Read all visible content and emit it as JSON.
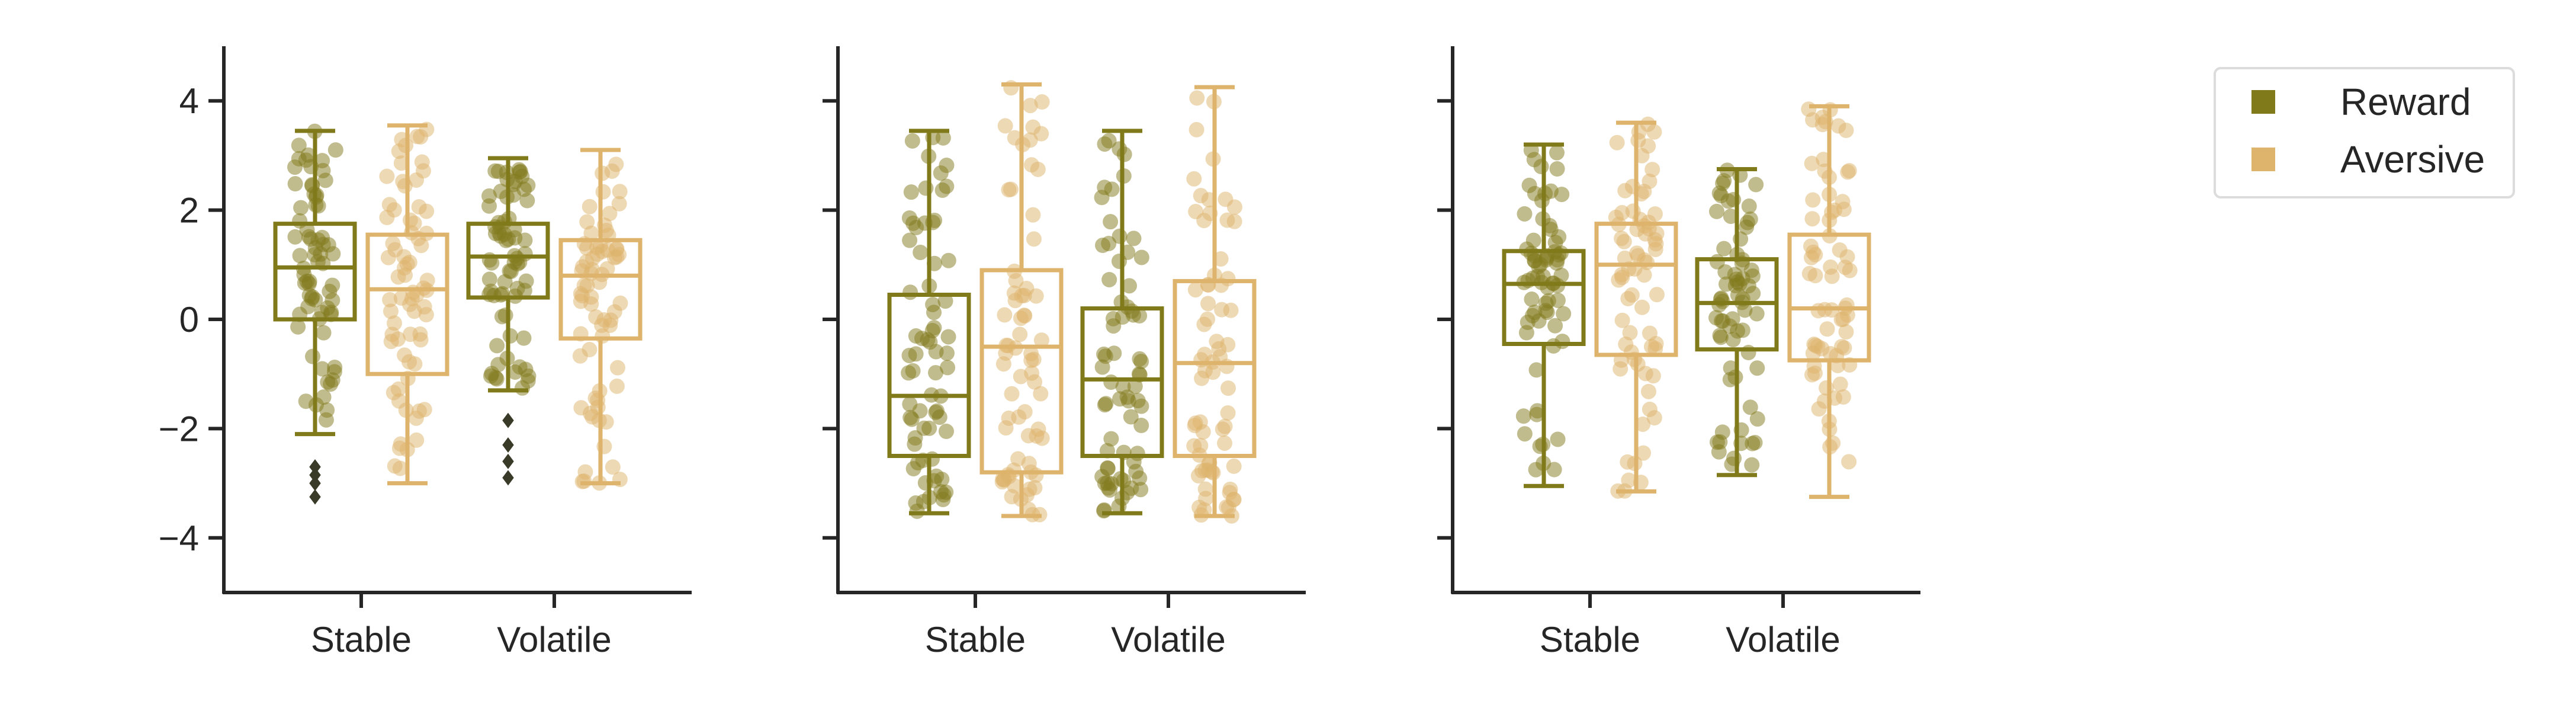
{
  "chart_data": {
    "type": "box",
    "panels": [
      {
        "categories": [
          "Stable",
          "Volatile"
        ],
        "ylim": [
          -5,
          5
        ],
        "yticks": [
          4,
          2,
          0,
          -2,
          -4
        ],
        "series": [
          {
            "name": "Reward",
            "boxes": [
              {
                "q1": 0.0,
                "median": 0.95,
                "q3": 1.75,
                "whisker_low": -2.1,
                "whisker_high": 3.45,
                "outliers": [
                  -2.7,
                  -2.85,
                  -3.0,
                  -3.25
                ]
              },
              {
                "q1": 0.4,
                "median": 1.15,
                "q3": 1.75,
                "whisker_low": -1.3,
                "whisker_high": 2.95,
                "outliers": [
                  -1.85,
                  -2.3,
                  -2.6,
                  -2.9
                ]
              }
            ]
          },
          {
            "name": "Aversive",
            "boxes": [
              {
                "q1": -1.0,
                "median": 0.55,
                "q3": 1.55,
                "whisker_low": -3.0,
                "whisker_high": 3.55,
                "outliers": []
              },
              {
                "q1": -0.35,
                "median": 0.8,
                "q3": 1.45,
                "whisker_low": -3.0,
                "whisker_high": 3.1,
                "outliers": []
              }
            ]
          }
        ]
      },
      {
        "categories": [
          "Stable",
          "Volatile"
        ],
        "ylim": [
          -5,
          5
        ],
        "yticks": [
          4,
          2,
          0,
          -2,
          -4
        ],
        "series": [
          {
            "name": "Reward",
            "boxes": [
              {
                "q1": -2.5,
                "median": -1.4,
                "q3": 0.45,
                "whisker_low": -3.55,
                "whisker_high": 3.45,
                "outliers": []
              },
              {
                "q1": -2.5,
                "median": -1.1,
                "q3": 0.2,
                "whisker_low": -3.55,
                "whisker_high": 3.45,
                "outliers": []
              }
            ]
          },
          {
            "name": "Aversive",
            "boxes": [
              {
                "q1": -2.8,
                "median": -0.5,
                "q3": 0.9,
                "whisker_low": -3.6,
                "whisker_high": 4.3,
                "outliers": []
              },
              {
                "q1": -2.5,
                "median": -0.8,
                "q3": 0.7,
                "whisker_low": -3.6,
                "whisker_high": 4.25,
                "outliers": []
              }
            ]
          }
        ]
      },
      {
        "categories": [
          "Stable",
          "Volatile"
        ],
        "ylim": [
          -5,
          5
        ],
        "yticks": [
          4,
          2,
          0,
          -2,
          -4
        ],
        "series": [
          {
            "name": "Reward",
            "boxes": [
              {
                "q1": -0.45,
                "median": 0.65,
                "q3": 1.25,
                "whisker_low": -3.05,
                "whisker_high": 3.2,
                "outliers": []
              },
              {
                "q1": -0.55,
                "median": 0.3,
                "q3": 1.1,
                "whisker_low": -2.85,
                "whisker_high": 2.75,
                "outliers": []
              }
            ]
          },
          {
            "name": "Aversive",
            "boxes": [
              {
                "q1": -0.65,
                "median": 1.0,
                "q3": 1.75,
                "whisker_low": -3.15,
                "whisker_high": 3.6,
                "outliers": []
              },
              {
                "q1": -0.75,
                "median": 0.2,
                "q3": 1.55,
                "whisker_low": -3.25,
                "whisker_high": 3.9,
                "outliers": []
              }
            ]
          }
        ]
      }
    ],
    "legend": {
      "placement": "top-right",
      "entries": [
        "Reward",
        "Aversive"
      ]
    },
    "colors": {
      "Reward": "#817a1b",
      "Aversive": "#deb36c",
      "outlier": "#3a3a28",
      "axis": "#262626"
    },
    "grid": false
  }
}
